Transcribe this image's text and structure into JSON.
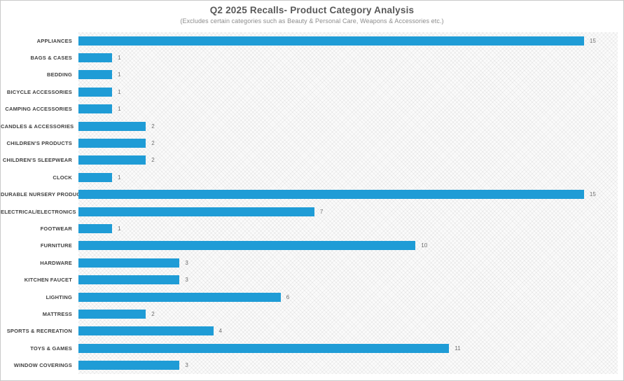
{
  "header": {
    "title": "Q2 2025 Recalls- Product Category Analysis",
    "subtitle": "(Excludes certain categories such as Beauty & Personal Care, Weapons & Accessories etc.)"
  },
  "chart_data": {
    "type": "bar",
    "orientation": "horizontal",
    "title": "Q2 2025 Recalls- Product Category Analysis",
    "subtitle": "(Excludes certain categories such as Beauty & Personal Care, Weapons & Accessories etc.)",
    "categories": [
      "APPLIANCES",
      "BAGS & CASES",
      "BEDDING",
      "BICYCLE ACCESSORIES",
      "CAMPING ACCESSORIES",
      "CANDLES & ACCESSORIES",
      "CHILDREN'S PRODUCTS",
      "CHILDREN'S SLEEPWEAR",
      "CLOCK",
      "DURABLE NURSERY PRODUCT",
      "ELECTRICAL/ELECTRONICS",
      "FOOTWEAR",
      "FURNITURE",
      "HARDWARE",
      "KITCHEN FAUCET",
      "LIGHTING",
      "MATTRESS",
      "SPORTS & RECREATION",
      "TOYS & GAMES",
      "WINDOW COVERINGS"
    ],
    "values": [
      15,
      1,
      1,
      1,
      1,
      2,
      2,
      2,
      1,
      15,
      7,
      1,
      10,
      3,
      3,
      6,
      2,
      4,
      11,
      3
    ],
    "xlabel": "",
    "ylabel": "",
    "xlim": [
      0,
      16
    ],
    "x_axis_visible": false,
    "grid": "none",
    "legend": "none",
    "data_labels": true,
    "bar_color": "#1f9cd6",
    "plot_background": "crosshatch"
  }
}
